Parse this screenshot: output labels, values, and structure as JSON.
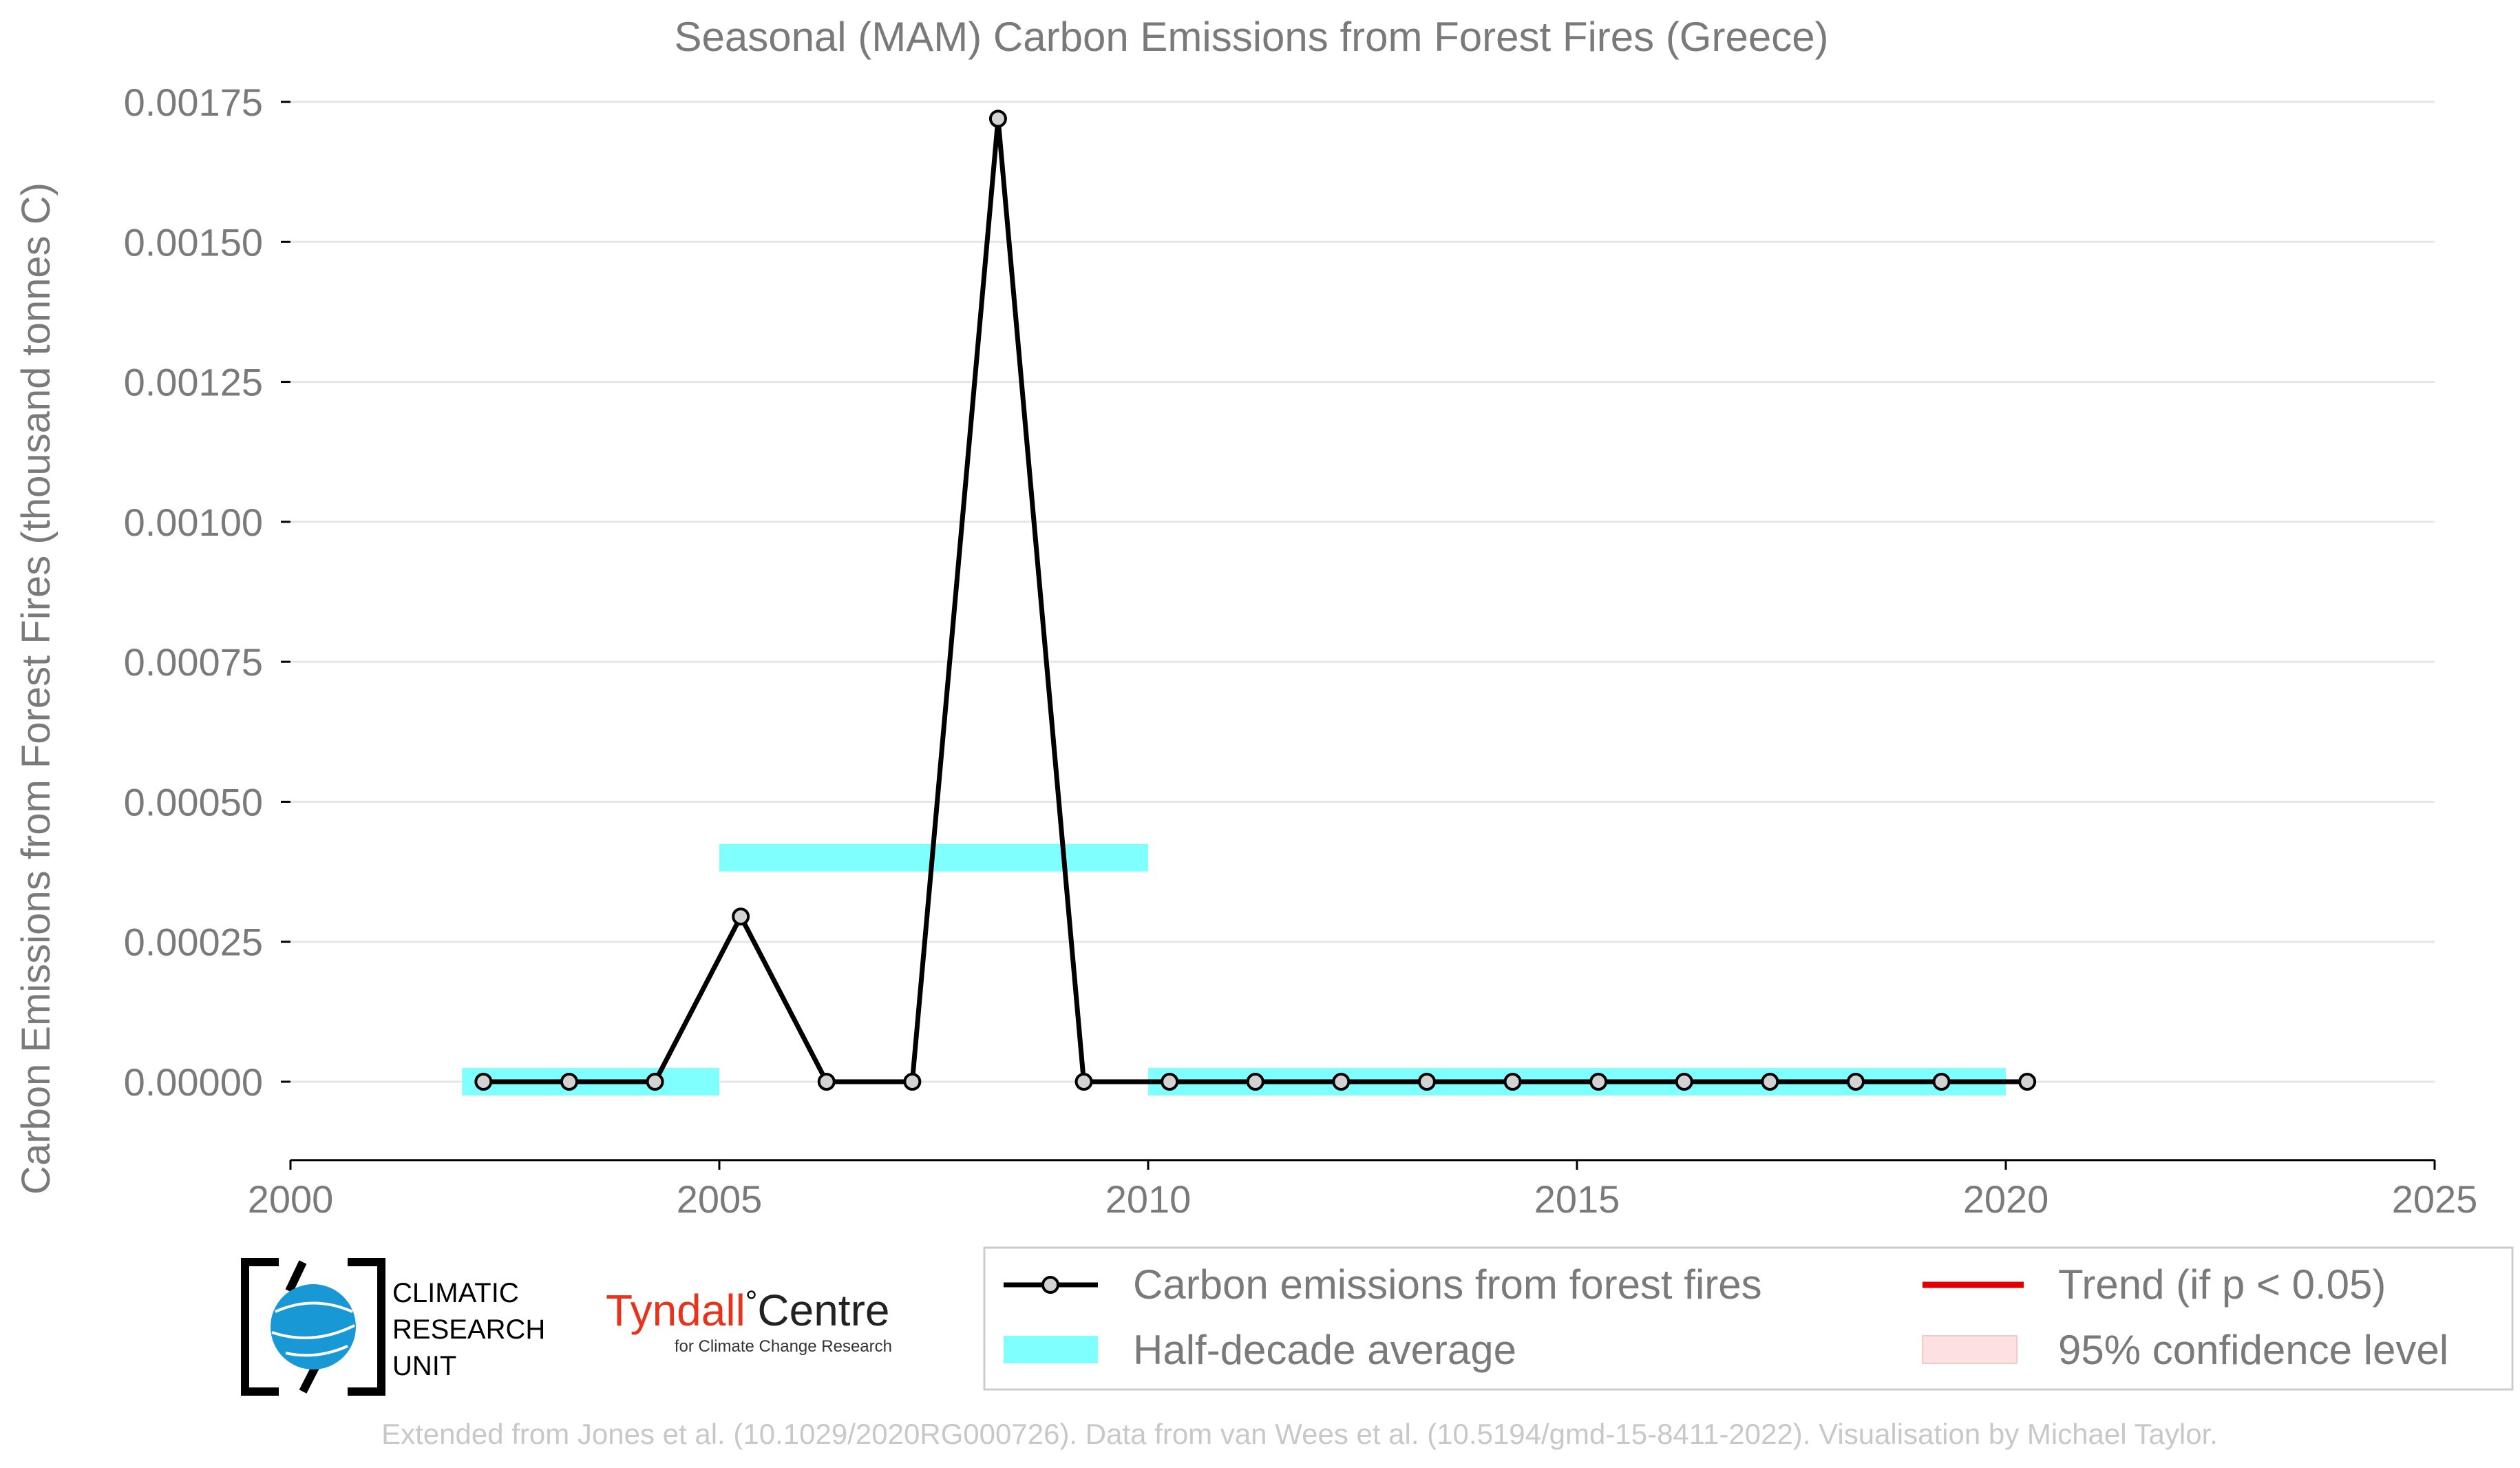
{
  "chart_data": {
    "type": "line",
    "title": "Seasonal (MAM) Carbon Emissions from Forest Fires (Greece)",
    "xlabel": "",
    "ylabel": "Carbon Emissions from Forest Fires (thousand tonnes C)",
    "xlim": [
      2000,
      2025
    ],
    "ylim": [
      -0.00014,
      0.00175
    ],
    "x_ticks": [
      2000,
      2005,
      2010,
      2015,
      2020,
      2025
    ],
    "y_ticks": [
      0.0,
      0.00025,
      0.0005,
      0.00075,
      0.001,
      0.00125,
      0.0015,
      0.00175
    ],
    "y_tick_labels": [
      "0.00000",
      "0.00025",
      "0.00050",
      "0.00075",
      "0.00100",
      "0.00125",
      "0.00150",
      "0.00175"
    ],
    "grid": "horizontal",
    "series": [
      {
        "name": "Carbon emissions from forest fires",
        "color": "#000000",
        "x": [
          2002,
          2003,
          2004,
          2005,
          2006,
          2007,
          2008,
          2009,
          2010,
          2011,
          2012,
          2013,
          2014,
          2015,
          2016,
          2017,
          2018,
          2019,
          2020
        ],
        "y": [
          0,
          0,
          0,
          0.000295,
          0,
          0,
          0.00172,
          0,
          0,
          0,
          0,
          0,
          0,
          0,
          0,
          0,
          0,
          0,
          0
        ]
      }
    ],
    "half_decade_average": {
      "name": "Half-decade average",
      "color": "#80ffff",
      "segments": [
        {
          "x_start": 2002,
          "x_end": 2005,
          "value": 0.0
        },
        {
          "x_start": 2005,
          "x_end": 2010,
          "value": 0.0004
        },
        {
          "x_start": 2010,
          "x_end": 2020,
          "value": 0.0
        }
      ]
    },
    "legend": {
      "placement": "bottom-right",
      "entries": [
        {
          "label": "Carbon emissions from forest fires",
          "color": "#000000",
          "kind": "line-marker"
        },
        {
          "label": "Trend (if p < 0.05)",
          "color": "#e00000",
          "kind": "line"
        },
        {
          "label": "Half-decade average",
          "color": "#80ffff",
          "kind": "patch"
        },
        {
          "label": "95% confidence level",
          "color": "#fde0e0",
          "kind": "patch"
        }
      ]
    }
  },
  "logos": {
    "cru": {
      "line1": "CLIMATIC",
      "line2": "RESEARCH",
      "line3": "UNIT"
    },
    "tyndall": {
      "name": "Tyndall",
      "name2": "Centre",
      "degree": "°",
      "tagline": "for Climate Change Research",
      "color": "#e8331c"
    }
  },
  "footer": "Extended from Jones et al. (10.1029/2020RG000726). Data from van Wees et al. (10.5194/gmd-15-8411-2022). Visualisation by Michael Taylor."
}
